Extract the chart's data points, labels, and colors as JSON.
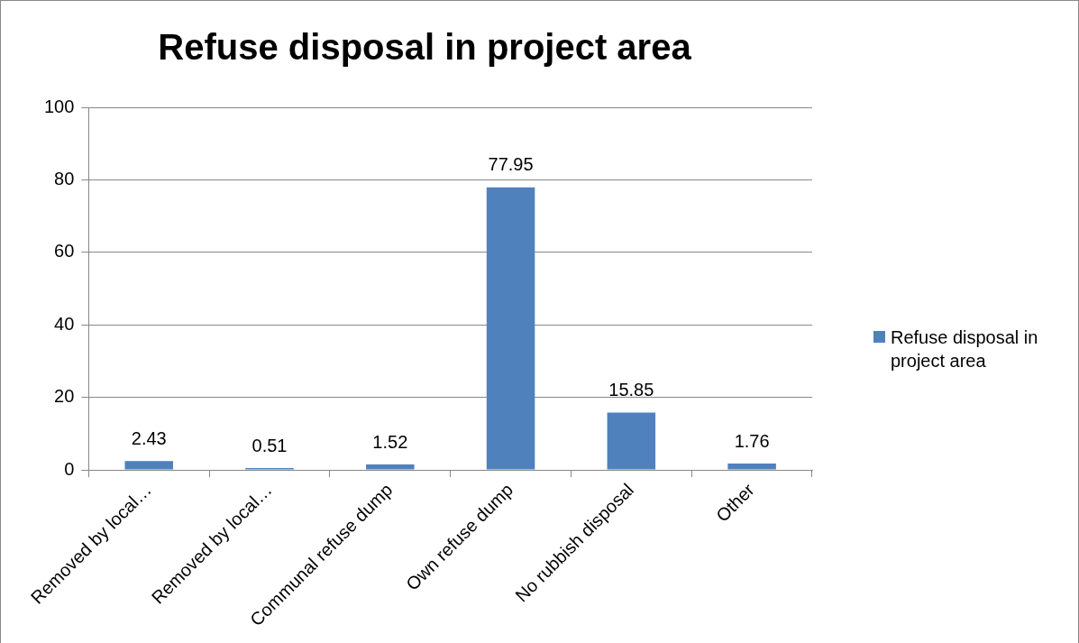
{
  "chart_data": {
    "type": "bar",
    "title": "Refuse disposal in project area",
    "categories": [
      "Removed by local…",
      "Removed by local…",
      "Communal refuse dump",
      "Own refuse dump",
      "No rubbish disposal",
      "Other"
    ],
    "series": [
      {
        "name": "Refuse disposal in project area",
        "color": "#4f81bd",
        "values": [
          2.43,
          0.51,
          1.52,
          77.95,
          15.85,
          1.76
        ]
      }
    ],
    "ylim": [
      0,
      100
    ],
    "yticks": [
      0,
      20,
      40,
      60,
      80,
      100
    ],
    "grid": "y",
    "legend": "right",
    "data_labels": true
  }
}
